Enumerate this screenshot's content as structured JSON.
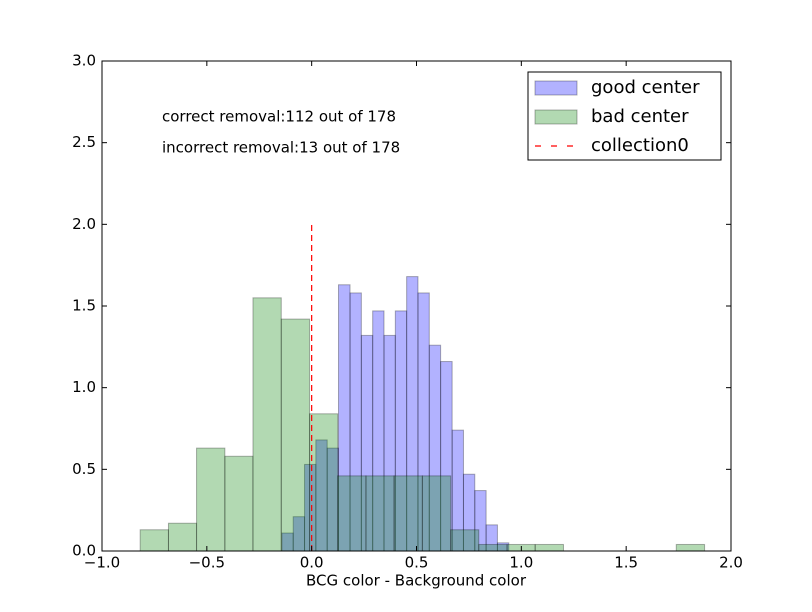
{
  "chart_data": {
    "type": "histogram",
    "xlabel": "BCG color - Background color",
    "annotations": [
      "correct removal:112 out of 178",
      "incorrect removal:13 out of 178"
    ],
    "series": [
      {
        "name": "good center",
        "color": "#0000ff",
        "bins": [
          -0.142,
          -0.088,
          -0.034,
          0.02,
          0.074,
          0.128,
          0.183,
          0.237,
          0.291,
          0.345,
          0.399,
          0.453,
          0.507,
          0.561,
          0.615,
          0.67,
          0.724,
          0.778,
          0.832,
          0.886,
          0.94
        ],
        "values": [
          0.11,
          0.21,
          0.53,
          0.68,
          0.63,
          1.63,
          1.58,
          1.32,
          1.47,
          1.32,
          1.47,
          1.68,
          1.58,
          1.26,
          1.16,
          0.74,
          0.47,
          0.37,
          0.16,
          0.05
        ]
      },
      {
        "name": "bad center",
        "color": "#008000",
        "bins": [
          -0.818,
          -0.683,
          -0.549,
          -0.414,
          -0.28,
          -0.145,
          -0.01,
          0.124,
          0.259,
          0.393,
          0.528,
          0.663,
          0.797,
          0.932,
          1.066,
          1.201,
          1.335,
          1.47,
          1.605,
          1.739,
          1.874
        ],
        "values": [
          0.13,
          0.17,
          0.63,
          0.58,
          1.55,
          1.42,
          0.84,
          0.46,
          0.46,
          0.46,
          0.46,
          0.13,
          0.04,
          0.04,
          0.04,
          0,
          0,
          0,
          0,
          0.04
        ]
      }
    ],
    "vline": {
      "name": "collection0",
      "color": "#ff0000",
      "x": 0,
      "ymin": 0,
      "ymax": 2.0
    },
    "xlim": [
      -1.0,
      2.0
    ],
    "xticks": [
      {
        "value": -1.0,
        "label": "−1.0"
      },
      {
        "value": -0.5,
        "label": "−0.5"
      },
      {
        "value": 0,
        "label": "0.0"
      },
      0.5,
      {
        "value": 1,
        "label": "1.0"
      },
      1.5,
      {
        "value": 2,
        "label": "2.0"
      }
    ],
    "ylim": [
      0,
      3.0
    ],
    "yticks": [
      {
        "value": 0,
        "label": "0.0"
      },
      0.5,
      {
        "value": 1,
        "label": "1.0"
      },
      1.5,
      {
        "value": 2,
        "label": "2.0"
      },
      2.5,
      {
        "value": 3,
        "label": "3.0"
      }
    ],
    "legend": "upper right"
  }
}
